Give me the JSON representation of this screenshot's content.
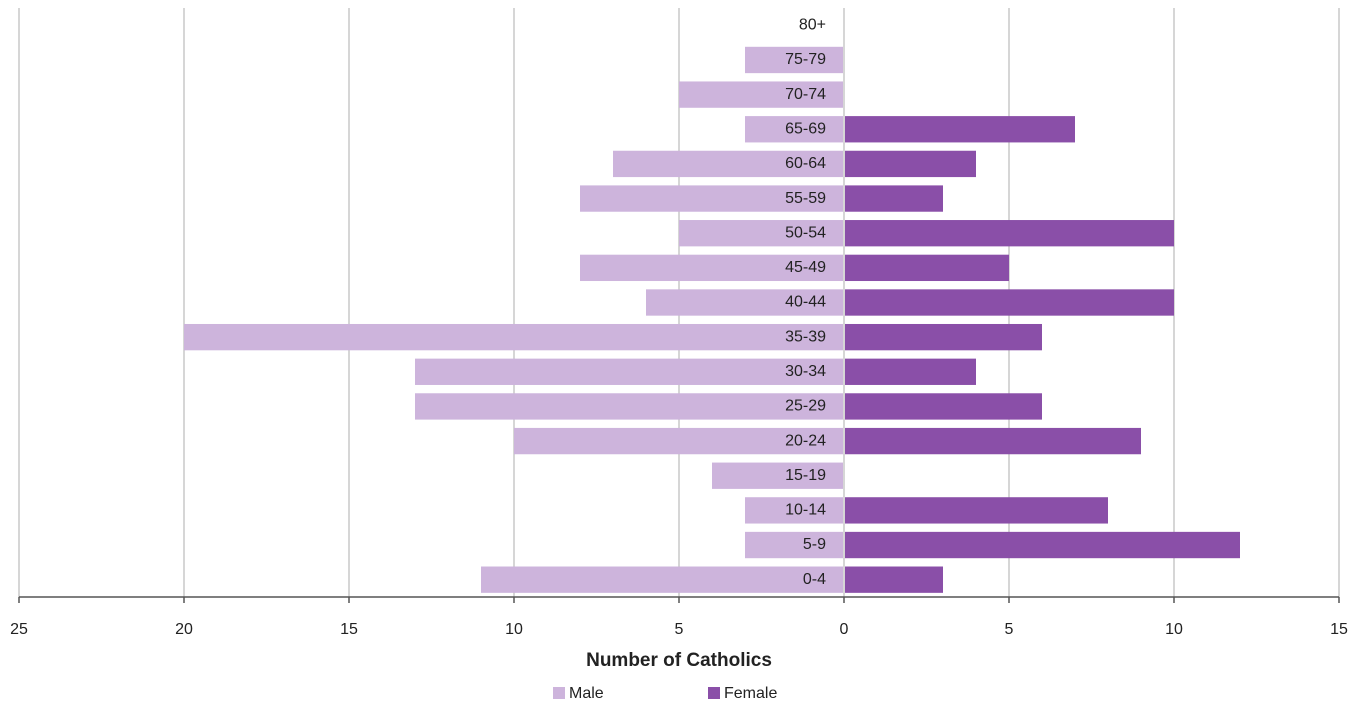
{
  "chart_data": {
    "type": "pyramid",
    "xlabel": "Number of Catholics",
    "categories": [
      "0-4",
      "5-9",
      "10-14",
      "15-19",
      "20-24",
      "25-29",
      "30-34",
      "35-39",
      "40-44",
      "45-49",
      "50-54",
      "55-59",
      "60-64",
      "65-69",
      "70-74",
      "75-79",
      "80+"
    ],
    "series": [
      {
        "name": "Male",
        "color": "#cdb4dc",
        "values": [
          -11,
          -3,
          -3,
          -4,
          -10,
          -13,
          -13,
          -20,
          -6,
          -8,
          -5,
          -8,
          -7,
          -3,
          -5,
          -3,
          0
        ]
      },
      {
        "name": "Female",
        "color": "#8a4fa8",
        "values": [
          3,
          12,
          8,
          0,
          9,
          6,
          4,
          6,
          10,
          5,
          10,
          3,
          4,
          7,
          0,
          0,
          0
        ]
      }
    ],
    "xlim": [
      -25,
      15
    ],
    "xticks": [
      {
        "value": -25,
        "label": "25"
      },
      {
        "value": -20,
        "label": "20"
      },
      {
        "value": -15,
        "label": "15"
      },
      {
        "value": -10,
        "label": "10"
      },
      {
        "value": -5,
        "label": "5"
      },
      0,
      5,
      10,
      15
    ],
    "grid": true,
    "legend": "bottom"
  }
}
